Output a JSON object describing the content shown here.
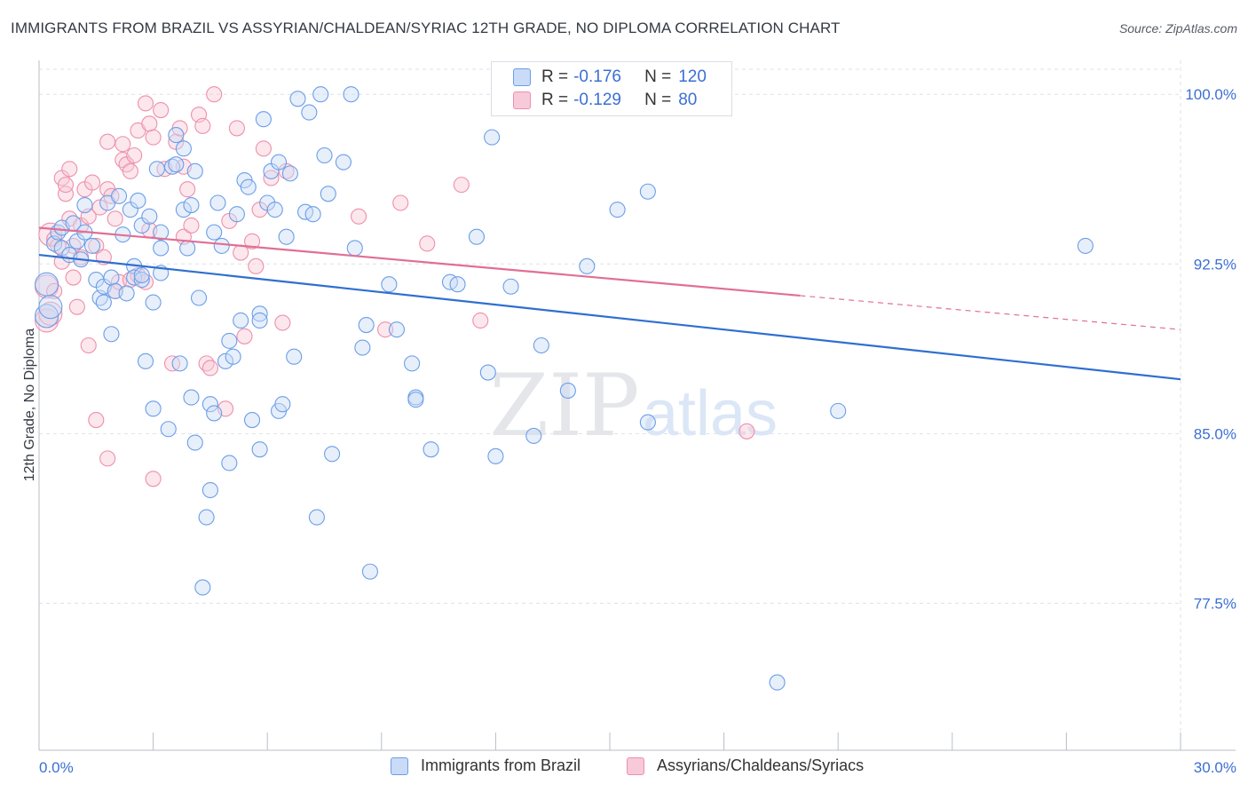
{
  "header": {
    "title": "IMMIGRANTS FROM BRAZIL VS ASSYRIAN/CHALDEAN/SYRIAC 12TH GRADE, NO DIPLOMA CORRELATION CHART",
    "source": "Source: ZipAtlas.com"
  },
  "watermark": {
    "zip": "ZIP",
    "atlas": "atlas"
  },
  "colors": {
    "blue": "#6b9ee8",
    "blue_fill": "#c9dbf7",
    "blue_line": "#2f6fd0",
    "pink": "#ee8fab",
    "pink_fill": "#f8c9d8",
    "pink_line": "#e06f96",
    "grid": "#dde1e6",
    "tick_label": "#3b6fd4"
  },
  "stats_legend": {
    "rows": [
      {
        "r_label": "R =",
        "r_value": "-0.176",
        "n_label": "N =",
        "n_value": "120"
      },
      {
        "r_label": "R =",
        "r_value": "-0.129",
        "n_label": "N =",
        "n_value": "80"
      }
    ]
  },
  "bottom_legend": {
    "items": [
      "Immigrants from Brazil",
      "Assyrians/Chaldeans/Syriacs"
    ]
  },
  "chart_data": {
    "type": "scatter",
    "title": "IMMIGRANTS FROM BRAZIL VS ASSYRIAN/CHALDEAN/SYRIAC 12TH GRADE, NO DIPLOMA CORRELATION CHART",
    "xlabel": "",
    "ylabel": "12th Grade, No Diploma",
    "xlim": [
      0,
      30
    ],
    "ylim": [
      71.0,
      101.5
    ],
    "x_tick_labels": [
      "0.0%",
      "30.0%"
    ],
    "y_ticks": [
      77.5,
      85.0,
      92.5,
      100.0
    ],
    "y_tick_labels": [
      "77.5%",
      "85.0%",
      "92.5%",
      "100.0%"
    ],
    "grid": true,
    "legend_position": "top-center",
    "series": [
      {
        "name": "Immigrants from Brazil",
        "R": -0.176,
        "N": 120,
        "trend": {
          "x0": 0.0,
          "y0": 92.9,
          "x1": 30.0,
          "y1": 87.4
        },
        "points": [
          [
            0.2,
            90.2
          ],
          [
            0.2,
            91.6
          ],
          [
            0.3,
            90.6
          ],
          [
            0.4,
            93.4
          ],
          [
            0.5,
            93.9
          ],
          [
            0.6,
            94.1
          ],
          [
            0.6,
            93.2
          ],
          [
            0.8,
            92.9
          ],
          [
            0.9,
            94.3
          ],
          [
            1.0,
            93.5
          ],
          [
            1.1,
            92.7
          ],
          [
            1.2,
            93.9
          ],
          [
            1.2,
            95.1
          ],
          [
            1.4,
            93.3
          ],
          [
            1.5,
            91.8
          ],
          [
            1.6,
            91.0
          ],
          [
            1.7,
            91.5
          ],
          [
            1.7,
            90.8
          ],
          [
            1.8,
            95.2
          ],
          [
            1.9,
            91.9
          ],
          [
            1.9,
            89.4
          ],
          [
            2.0,
            91.3
          ],
          [
            2.1,
            95.5
          ],
          [
            2.2,
            93.8
          ],
          [
            2.3,
            91.2
          ],
          [
            2.4,
            94.9
          ],
          [
            2.5,
            92.4
          ],
          [
            2.5,
            91.9
          ],
          [
            2.6,
            95.3
          ],
          [
            2.7,
            91.8
          ],
          [
            2.7,
            92.0
          ],
          [
            2.7,
            94.2
          ],
          [
            2.8,
            88.2
          ],
          [
            2.9,
            94.6
          ],
          [
            3.0,
            90.8
          ],
          [
            3.2,
            93.9
          ],
          [
            3.0,
            86.1
          ],
          [
            3.1,
            96.7
          ],
          [
            3.2,
            92.1
          ],
          [
            3.2,
            93.2
          ],
          [
            3.4,
            85.2
          ],
          [
            3.5,
            96.8
          ],
          [
            3.6,
            96.9
          ],
          [
            3.6,
            98.2
          ],
          [
            3.7,
            88.1
          ],
          [
            3.8,
            94.9
          ],
          [
            3.8,
            97.6
          ],
          [
            3.9,
            93.2
          ],
          [
            4.0,
            86.6
          ],
          [
            4.0,
            95.1
          ],
          [
            4.1,
            84.6
          ],
          [
            4.1,
            96.6
          ],
          [
            4.2,
            91.0
          ],
          [
            4.3,
            78.2
          ],
          [
            4.4,
            81.3
          ],
          [
            4.5,
            82.5
          ],
          [
            4.5,
            86.3
          ],
          [
            4.6,
            85.9
          ],
          [
            4.6,
            93.9
          ],
          [
            4.7,
            95.2
          ],
          [
            4.8,
            93.3
          ],
          [
            4.9,
            88.2
          ],
          [
            5.0,
            89.1
          ],
          [
            5.0,
            83.7
          ],
          [
            5.1,
            88.4
          ],
          [
            5.2,
            94.7
          ],
          [
            5.3,
            90.0
          ],
          [
            5.4,
            96.2
          ],
          [
            5.5,
            95.9
          ],
          [
            5.6,
            85.6
          ],
          [
            5.8,
            84.3
          ],
          [
            5.8,
            90.3
          ],
          [
            5.8,
            90.0
          ],
          [
            5.9,
            98.9
          ],
          [
            6.0,
            95.2
          ],
          [
            6.1,
            96.6
          ],
          [
            6.2,
            94.9
          ],
          [
            6.3,
            86.0
          ],
          [
            6.3,
            97.0
          ],
          [
            6.4,
            86.3
          ],
          [
            6.5,
            93.7
          ],
          [
            6.6,
            96.5
          ],
          [
            6.7,
            88.4
          ],
          [
            6.8,
            99.8
          ],
          [
            7.0,
            94.8
          ],
          [
            7.1,
            99.2
          ],
          [
            7.2,
            94.7
          ],
          [
            7.3,
            81.3
          ],
          [
            7.4,
            100.0
          ],
          [
            7.5,
            97.3
          ],
          [
            7.6,
            95.6
          ],
          [
            7.7,
            84.1
          ],
          [
            8.0,
            97.0
          ],
          [
            8.2,
            100.0
          ],
          [
            8.3,
            93.2
          ],
          [
            8.5,
            88.8
          ],
          [
            8.6,
            89.8
          ],
          [
            8.7,
            78.9
          ],
          [
            9.2,
            91.6
          ],
          [
            9.4,
            89.6
          ],
          [
            9.8,
            88.1
          ],
          [
            9.9,
            86.6
          ],
          [
            9.9,
            86.5
          ],
          [
            10.3,
            84.3
          ],
          [
            10.8,
            91.7
          ],
          [
            11.0,
            91.6
          ],
          [
            11.5,
            93.7
          ],
          [
            11.8,
            87.7
          ],
          [
            12.0,
            84.0
          ],
          [
            11.9,
            98.1
          ],
          [
            12.2,
            100.0
          ],
          [
            12.4,
            91.5
          ],
          [
            13.0,
            84.9
          ],
          [
            13.2,
            88.9
          ],
          [
            13.9,
            86.9
          ],
          [
            14.4,
            92.4
          ],
          [
            15.2,
            94.9
          ],
          [
            16.0,
            85.5
          ],
          [
            16.0,
            95.7
          ],
          [
            16.1,
            100.0
          ],
          [
            19.4,
            74.0
          ],
          [
            21.0,
            86.0
          ],
          [
            27.5,
            93.3
          ]
        ]
      },
      {
        "name": "Assyrians/Chaldeans/Syriacs",
        "R": -0.129,
        "N": 80,
        "trend": {
          "x0": 0.0,
          "y0": 94.1,
          "x1": 20.0,
          "y1": 91.1,
          "dash_x1": 30.0,
          "dash_y1": 89.6
        },
        "points": [
          [
            0.2,
            90.0
          ],
          [
            0.2,
            91.5
          ],
          [
            0.3,
            93.8
          ],
          [
            0.4,
            93.6
          ],
          [
            0.4,
            91.3
          ],
          [
            0.5,
            93.3
          ],
          [
            0.6,
            92.6
          ],
          [
            0.6,
            96.3
          ],
          [
            0.7,
            95.6
          ],
          [
            0.7,
            96.0
          ],
          [
            0.8,
            94.5
          ],
          [
            0.8,
            96.7
          ],
          [
            0.9,
            93.3
          ],
          [
            0.9,
            91.9
          ],
          [
            1.0,
            90.6
          ],
          [
            1.1,
            92.8
          ],
          [
            1.1,
            94.2
          ],
          [
            1.2,
            95.8
          ],
          [
            1.3,
            94.6
          ],
          [
            1.3,
            88.9
          ],
          [
            1.4,
            96.1
          ],
          [
            1.5,
            93.3
          ],
          [
            1.5,
            85.6
          ],
          [
            1.6,
            95.0
          ],
          [
            1.7,
            92.8
          ],
          [
            1.8,
            97.9
          ],
          [
            1.8,
            95.8
          ],
          [
            1.8,
            83.9
          ],
          [
            1.9,
            95.5
          ],
          [
            2.0,
            91.3
          ],
          [
            2.0,
            94.5
          ],
          [
            2.1,
            91.7
          ],
          [
            2.2,
            97.1
          ],
          [
            2.2,
            97.8
          ],
          [
            2.3,
            96.9
          ],
          [
            2.4,
            96.6
          ],
          [
            2.4,
            91.8
          ],
          [
            2.5,
            97.3
          ],
          [
            2.6,
            98.4
          ],
          [
            2.6,
            92.0
          ],
          [
            2.8,
            99.6
          ],
          [
            2.8,
            91.7
          ],
          [
            2.9,
            98.7
          ],
          [
            2.9,
            94.0
          ],
          [
            3.0,
            83.0
          ],
          [
            3.0,
            98.1
          ],
          [
            3.2,
            99.3
          ],
          [
            3.3,
            96.7
          ],
          [
            3.5,
            88.1
          ],
          [
            3.6,
            97.9
          ],
          [
            3.7,
            98.5
          ],
          [
            3.8,
            93.7
          ],
          [
            3.8,
            96.8
          ],
          [
            3.9,
            95.8
          ],
          [
            4.0,
            94.2
          ],
          [
            4.2,
            99.1
          ],
          [
            4.3,
            98.6
          ],
          [
            4.4,
            88.1
          ],
          [
            4.5,
            87.9
          ],
          [
            4.6,
            100.0
          ],
          [
            4.9,
            86.1
          ],
          [
            5.0,
            94.4
          ],
          [
            5.2,
            98.5
          ],
          [
            5.3,
            93.0
          ],
          [
            5.4,
            89.3
          ],
          [
            5.6,
            93.5
          ],
          [
            5.7,
            92.4
          ],
          [
            5.8,
            94.9
          ],
          [
            5.9,
            97.6
          ],
          [
            6.1,
            96.3
          ],
          [
            6.4,
            89.9
          ],
          [
            6.5,
            96.6
          ],
          [
            8.4,
            94.6
          ],
          [
            9.1,
            89.6
          ],
          [
            9.5,
            95.2
          ],
          [
            10.2,
            93.4
          ],
          [
            11.1,
            96.0
          ],
          [
            11.6,
            90.0
          ],
          [
            18.6,
            85.1
          ],
          [
            0.3,
            90.3
          ]
        ]
      }
    ]
  }
}
